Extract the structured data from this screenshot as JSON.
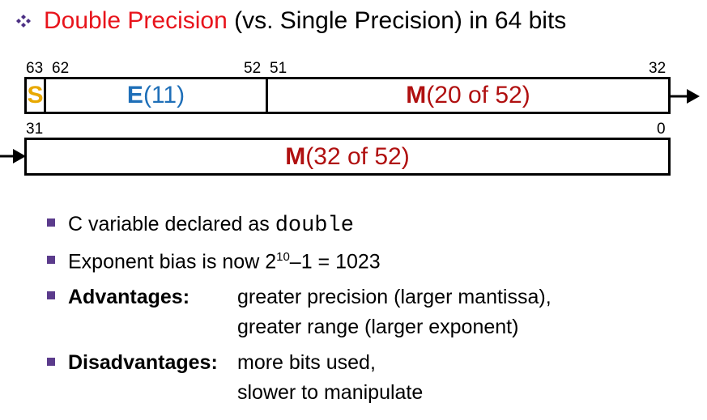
{
  "title": {
    "bullet_icon": "four-diamond-bullet-icon",
    "highlight": "Double Precision",
    "rest": " (vs. Single Precision) in 64 bits"
  },
  "word1": {
    "bits": {
      "b63": "63",
      "b62": "62",
      "b52": "52",
      "b51": "51",
      "b32": "32"
    },
    "sign": "S",
    "exp_letter": "E",
    "exp_count": " (11)",
    "mant_letter": "M",
    "mant_count": " (20 of 52)"
  },
  "word2": {
    "bits": {
      "b31": "31",
      "b0": "0"
    },
    "mant_letter": "M",
    "mant_count": " (32 of 52)"
  },
  "bullets": {
    "b1_text": "C variable declared as ",
    "b1_code": "double",
    "b2_text": "Exponent bias is now 2",
    "b2_sup": "10",
    "b2_rest": "–1 = 1023",
    "b3_label": "Advantages:",
    "b3_line1": "greater precision (larger mantissa),",
    "b3_line2": "greater range (larger exponent)",
    "b4_label": "Disadvantages:",
    "b4_line1": "more bits used,",
    "b4_line2": "slower to manipulate"
  },
  "colors": {
    "title_red": "#e8141c",
    "exponent_blue": "#1f6fb8",
    "mantissa_red": "#b01010",
    "sign_yellow": "#e8a800",
    "bullet_purple": "#5b3b8c"
  }
}
